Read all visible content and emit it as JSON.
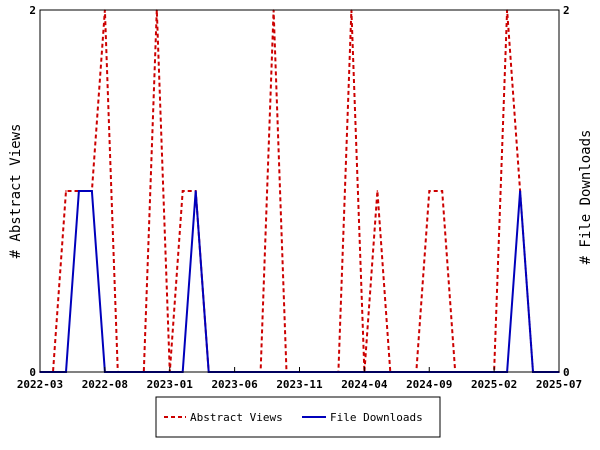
{
  "chart_data": {
    "type": "line",
    "title": "",
    "ylabel_left": "# Abstract Views",
    "ylabel_right": "# File Downloads",
    "ylim": [
      0,
      2
    ],
    "y_ticks_left": [
      "0",
      "2"
    ],
    "y_ticks_right": [
      "0",
      "2"
    ],
    "x_range": [
      "2022-03",
      "2025-07"
    ],
    "x_ticks": [
      "2022-03",
      "2022-08",
      "2023-01",
      "2023-06",
      "2023-11",
      "2024-04",
      "2024-09",
      "2025-02",
      "2025-07"
    ],
    "grid": false,
    "legend_position": "bottom",
    "series": [
      {
        "name": "Abstract Views",
        "color": "#cc0000",
        "line_style": "dashed",
        "x": [
          "2022-03",
          "2022-04",
          "2022-05",
          "2022-06",
          "2022-07",
          "2022-08",
          "2022-09",
          "2022-10",
          "2022-11",
          "2022-12",
          "2023-01",
          "2023-02",
          "2023-03",
          "2023-04",
          "2023-05",
          "2023-06",
          "2023-07",
          "2023-08",
          "2023-09",
          "2023-10",
          "2023-11",
          "2023-12",
          "2024-01",
          "2024-02",
          "2024-03",
          "2024-04",
          "2024-05",
          "2024-06",
          "2024-07",
          "2024-08",
          "2024-09",
          "2024-10",
          "2024-11",
          "2024-12",
          "2025-01",
          "2025-02",
          "2025-03",
          "2025-04",
          "2025-05",
          "2025-06",
          "2025-07"
        ],
        "values": [
          0,
          0,
          1,
          1,
          1,
          2,
          0,
          0,
          0,
          2,
          0,
          1,
          1,
          0,
          0,
          0,
          0,
          0,
          2,
          0,
          0,
          0,
          0,
          0,
          2,
          0,
          1,
          0,
          0,
          0,
          1,
          1,
          0,
          0,
          0,
          0,
          2,
          1,
          0,
          0,
          0
        ]
      },
      {
        "name": "File Downloads",
        "color": "#0000bb",
        "line_style": "solid",
        "x": [
          "2022-03",
          "2022-04",
          "2022-05",
          "2022-06",
          "2022-07",
          "2022-08",
          "2022-09",
          "2022-10",
          "2022-11",
          "2022-12",
          "2023-01",
          "2023-02",
          "2023-03",
          "2023-04",
          "2023-05",
          "2023-06",
          "2023-07",
          "2023-08",
          "2023-09",
          "2023-10",
          "2023-11",
          "2023-12",
          "2024-01",
          "2024-02",
          "2024-03",
          "2024-04",
          "2024-05",
          "2024-06",
          "2024-07",
          "2024-08",
          "2024-09",
          "2024-10",
          "2024-11",
          "2024-12",
          "2025-01",
          "2025-02",
          "2025-03",
          "2025-04",
          "2025-05",
          "2025-06",
          "2025-07"
        ],
        "values": [
          0,
          0,
          0,
          1,
          1,
          0,
          0,
          0,
          0,
          0,
          0,
          0,
          1,
          0,
          0,
          0,
          0,
          0,
          0,
          0,
          0,
          0,
          0,
          0,
          0,
          0,
          0,
          0,
          0,
          0,
          0,
          0,
          0,
          0,
          0,
          0,
          0,
          1,
          0,
          0,
          0
        ]
      }
    ]
  }
}
